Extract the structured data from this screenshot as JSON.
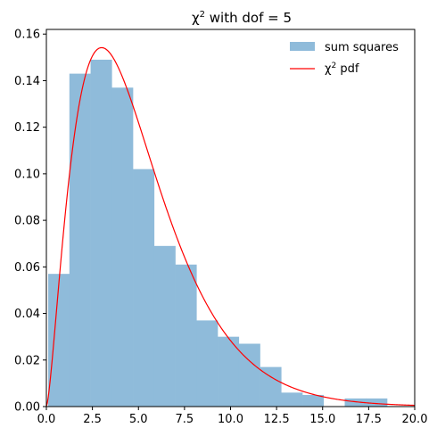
{
  "chart_data": {
    "type": "bar",
    "title": {
      "base": "χ",
      "sup": "2",
      "rest": " with dof = 5"
    },
    "xlim": [
      0,
      20
    ],
    "ylim": [
      0,
      0.162
    ],
    "x_ticks": [
      "0.0",
      "2.5",
      "5.0",
      "7.5",
      "10.0",
      "12.5",
      "15.0",
      "17.5",
      "20.0"
    ],
    "x_tick_values": [
      0,
      2.5,
      5,
      7.5,
      10,
      12.5,
      15,
      17.5,
      20
    ],
    "y_ticks": [
      "0.00",
      "0.02",
      "0.04",
      "0.06",
      "0.08",
      "0.10",
      "0.12",
      "0.14",
      "0.16"
    ],
    "y_tick_values": [
      0,
      0.02,
      0.04,
      0.06,
      0.08,
      0.1,
      0.12,
      0.14,
      0.16
    ],
    "histogram": {
      "name": "sum squares",
      "color": "#8fbbda",
      "bin_edges": [
        0.1,
        1.25,
        2.4,
        3.55,
        4.7,
        5.85,
        7.0,
        8.15,
        9.3,
        10.45,
        11.6,
        12.75,
        13.9,
        15.05,
        16.2,
        17.35,
        18.5
      ],
      "values": [
        0.057,
        0.143,
        0.149,
        0.137,
        0.102,
        0.069,
        0.061,
        0.037,
        0.03,
        0.027,
        0.017,
        0.006,
        0.005,
        0.0,
        0.0035,
        0.0035
      ]
    },
    "curve": {
      "name_base": "χ",
      "name_sup": "2",
      "name_rest": " pdf",
      "color": "#ff0000",
      "dof": 5,
      "x_range": [
        0,
        20
      ]
    },
    "legend": {
      "position": "top-right"
    }
  }
}
